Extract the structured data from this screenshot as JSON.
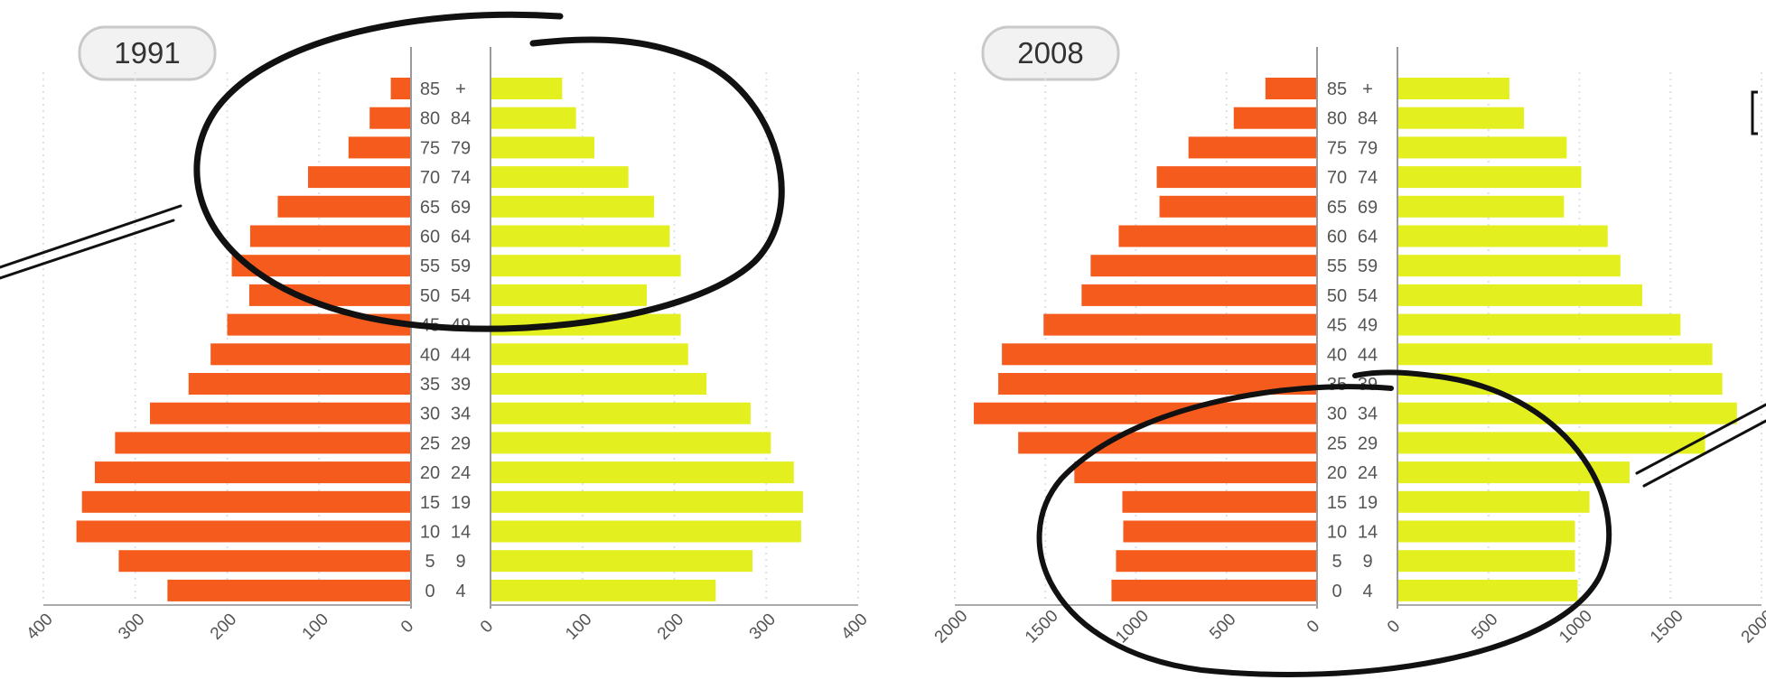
{
  "chart_data": [
    {
      "type": "bar",
      "title": "1991",
      "age_groups": [
        [
          "0",
          "4"
        ],
        [
          "5",
          "9"
        ],
        [
          "10",
          "14"
        ],
        [
          "15",
          "19"
        ],
        [
          "20",
          "24"
        ],
        [
          "25",
          "29"
        ],
        [
          "30",
          "34"
        ],
        [
          "35",
          "39"
        ],
        [
          "40",
          "44"
        ],
        [
          "45",
          "49"
        ],
        [
          "50",
          "54"
        ],
        [
          "55",
          "59"
        ],
        [
          "60",
          "64"
        ],
        [
          "65",
          "69"
        ],
        [
          "70",
          "74"
        ],
        [
          "75",
          "79"
        ],
        [
          "80",
          "84"
        ],
        [
          "85",
          "+"
        ]
      ],
      "series": [
        {
          "color": "#f45b1c",
          "values": [
            265,
            318,
            364,
            358,
            344,
            322,
            284,
            242,
            218,
            200,
            176,
            195,
            175,
            145,
            112,
            68,
            45,
            22
          ]
        },
        {
          "color": "#e3ef1f",
          "values": [
            245,
            285,
            338,
            340,
            330,
            305,
            283,
            235,
            215,
            207,
            170,
            207,
            195,
            178,
            150,
            113,
            93,
            78
          ]
        }
      ],
      "left_ticks": [
        "400",
        "300",
        "200",
        "100",
        "0"
      ],
      "right_ticks": [
        "0",
        "100",
        "200",
        "300",
        "400"
      ],
      "xlim": [
        0,
        400
      ]
    },
    {
      "type": "bar",
      "title": "2008",
      "age_groups": [
        [
          "0",
          "4"
        ],
        [
          "5",
          "9"
        ],
        [
          "10",
          "14"
        ],
        [
          "15",
          "19"
        ],
        [
          "20",
          "24"
        ],
        [
          "25",
          "29"
        ],
        [
          "30",
          "34"
        ],
        [
          "35",
          "39"
        ],
        [
          "40",
          "44"
        ],
        [
          "45",
          "49"
        ],
        [
          "50",
          "54"
        ],
        [
          "55",
          "59"
        ],
        [
          "60",
          "64"
        ],
        [
          "65",
          "69"
        ],
        [
          "70",
          "74"
        ],
        [
          "75",
          "79"
        ],
        [
          "80",
          "84"
        ],
        [
          "85",
          "+"
        ]
      ],
      "series": [
        {
          "color": "#f45b1c",
          "values": [
            1135,
            1110,
            1070,
            1075,
            1340,
            1650,
            1895,
            1760,
            1740,
            1510,
            1300,
            1250,
            1095,
            870,
            885,
            710,
            460,
            285
          ]
        },
        {
          "color": "#e3ef1f",
          "values": [
            990,
            975,
            975,
            1055,
            1275,
            1690,
            1865,
            1785,
            1730,
            1555,
            1345,
            1225,
            1155,
            915,
            1010,
            930,
            695,
            615
          ]
        }
      ],
      "left_ticks": [
        "2000",
        "1500",
        "1000",
        "500",
        "0"
      ],
      "right_ticks": [
        "0",
        "500",
        "1000",
        "1500",
        "2000"
      ],
      "xlim": [
        0,
        2000
      ]
    }
  ]
}
